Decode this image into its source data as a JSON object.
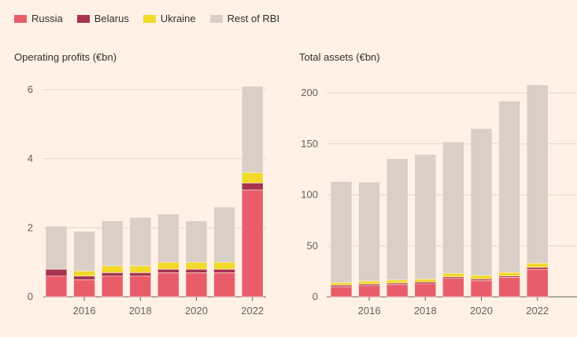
{
  "legend": [
    {
      "label": "Russia",
      "color": "#e95d6b"
    },
    {
      "label": "Belarus",
      "color": "#a8334e"
    },
    {
      "label": "Ukraine",
      "color": "#f2d92a"
    },
    {
      "label": "Rest of RBI",
      "color": "#dacfc7"
    }
  ],
  "chart_data": [
    {
      "type": "bar",
      "stacked": true,
      "title": "Operating profits (€bn)",
      "categories": [
        "2015",
        "2016",
        "2017",
        "2018",
        "2019",
        "2020",
        "2021",
        "2022"
      ],
      "xtick_labels": [
        "2016",
        "2018",
        "2020",
        "2022"
      ],
      "ylim": [
        0,
        6.2
      ],
      "yticks": [
        "0",
        "2",
        "4",
        "6"
      ],
      "series": [
        {
          "name": "Russia",
          "values": [
            0.6,
            0.5,
            0.6,
            0.6,
            0.7,
            0.7,
            0.7,
            3.1
          ]
        },
        {
          "name": "Belarus",
          "values": [
            0.2,
            0.1,
            0.1,
            0.1,
            0.1,
            0.1,
            0.1,
            0.2
          ]
        },
        {
          "name": "Ukraine",
          "values": [
            0.0,
            0.15,
            0.2,
            0.2,
            0.2,
            0.2,
            0.2,
            0.3
          ]
        },
        {
          "name": "Rest of RBI",
          "values": [
            1.25,
            1.15,
            1.3,
            1.4,
            1.4,
            1.2,
            1.6,
            2.5
          ]
        }
      ]
    },
    {
      "type": "bar",
      "stacked": true,
      "title": "Total assets (€bn)",
      "categories": [
        "2015",
        "2016",
        "2017",
        "2018",
        "2019",
        "2020",
        "2021",
        "2022"
      ],
      "xtick_labels": [
        "2016",
        "2018",
        "2020",
        "2022"
      ],
      "ylim": [
        0,
        210
      ],
      "yticks": [
        "0",
        "50",
        "100",
        "150",
        "200"
      ],
      "series": [
        {
          "name": "Russia",
          "values": [
            10,
            11,
            12,
            13,
            18,
            16,
            19,
            27
          ]
        },
        {
          "name": "Belarus",
          "values": [
            1.5,
            1.5,
            1.5,
            1.5,
            1.5,
            1.5,
            1.5,
            2
          ]
        },
        {
          "name": "Ukraine",
          "values": [
            2.5,
            3,
            3,
            3,
            3.5,
            3.5,
            3.5,
            4
          ]
        },
        {
          "name": "Rest of RBI",
          "values": [
            99,
            97,
            119,
            122,
            129,
            144,
            168,
            175
          ]
        }
      ]
    }
  ]
}
